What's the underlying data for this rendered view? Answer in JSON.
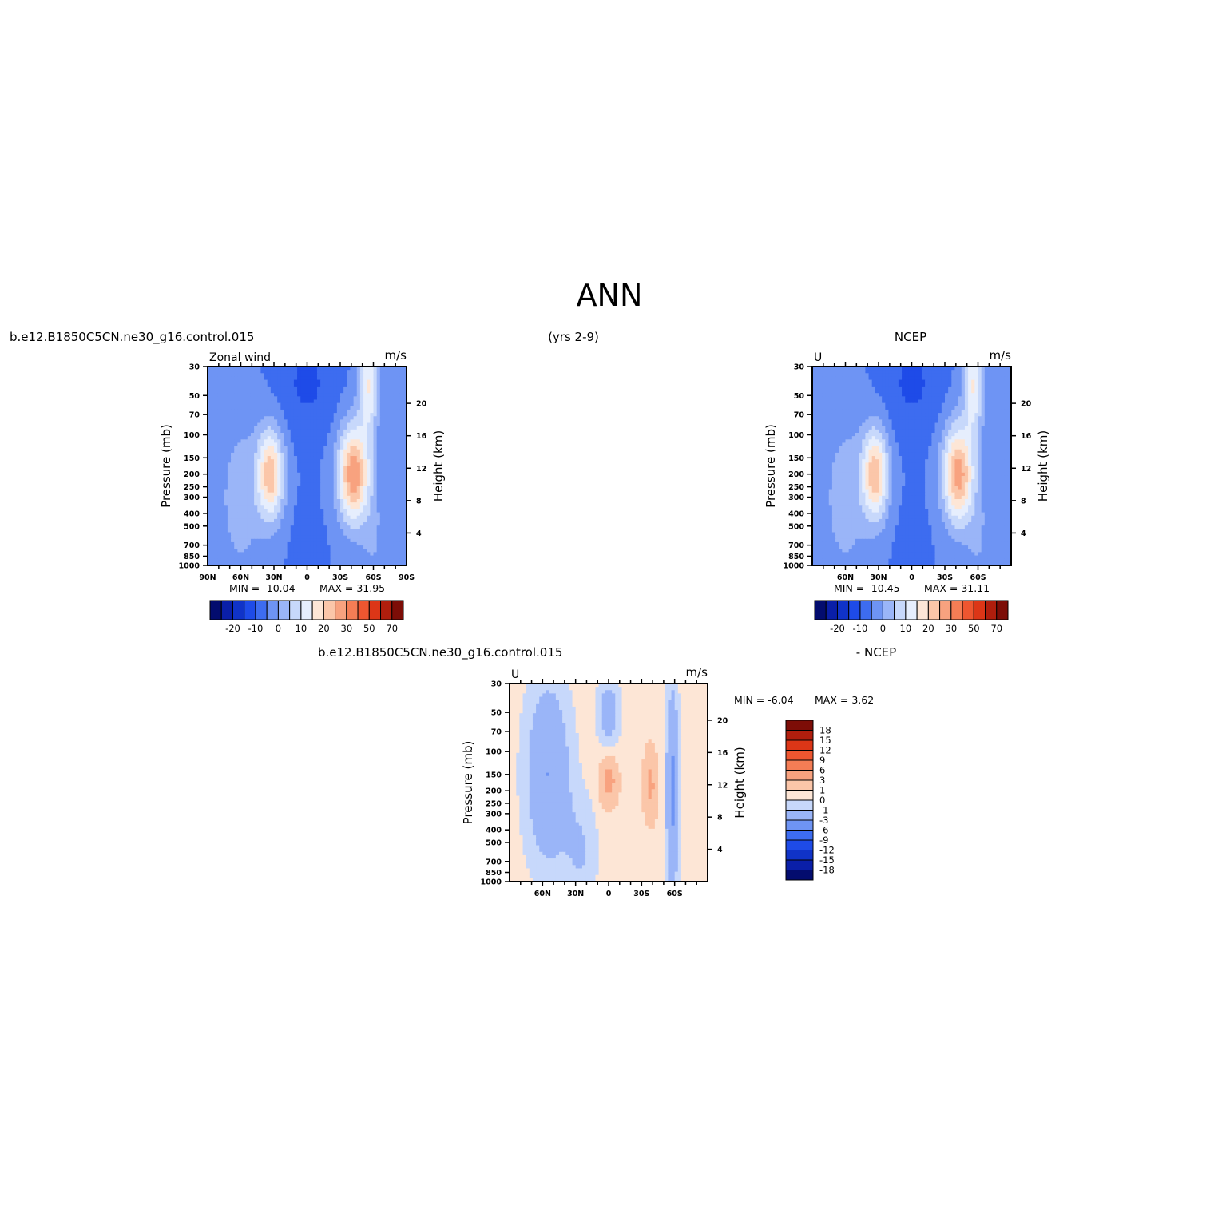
{
  "page": {
    "title": "ANN",
    "case_name": "b.e12.B1850C5CN.ne30_g16.control.015",
    "years": "(yrs 2-9)",
    "obs_name": "NCEP",
    "diff_case_name": "b.e12.B1850C5CN.ne30_g16.control.015",
    "diff_obs_name": "- NCEP"
  },
  "chart_data": [
    {
      "type": "heatmap",
      "panel": "model",
      "title": "Zonal wind",
      "units": "m/s",
      "ylabel": "Pressure (mb)",
      "ylabel_right": "Height (km)",
      "yscale": "log",
      "ylim": [
        1000,
        30
      ],
      "xlim": [
        90,
        -90
      ],
      "x_ticks": [
        90,
        60,
        30,
        0,
        -30,
        -60,
        -90
      ],
      "x_tick_labels": [
        "90N",
        "60N",
        "30N",
        "0",
        "30S",
        "60S",
        "90S"
      ],
      "pressure_ticks": [
        30,
        50,
        70,
        100,
        150,
        200,
        250,
        300,
        400,
        500,
        700,
        850,
        1000
      ],
      "height_ticks": [
        4,
        8,
        12,
        16,
        20
      ],
      "min_label": "MIN = -10.04",
      "max_label": "MAX = 31.95",
      "min": -10.04,
      "max": 31.95,
      "colorbar": {
        "levels": [
          -20,
          -10,
          0,
          10,
          20,
          30,
          50,
          70
        ],
        "tick_labels": [
          "-20",
          "-10",
          "0",
          "10",
          "20",
          "30",
          "50",
          "70"
        ],
        "boundaries": [
          -30,
          -25,
          -20,
          -15,
          -10,
          -5,
          0,
          5,
          10,
          15,
          20,
          25,
          30,
          40,
          50,
          60,
          70,
          80
        ],
        "colors": [
          "#030c6e",
          "#0a1fa8",
          "#1033c8",
          "#1e4be8",
          "#3d6cf0",
          "#6e94f4",
          "#9ab5f8",
          "#c7d8fb",
          "#e6eefd",
          "#fde6d6",
          "#fbc6a9",
          "#f8a27f",
          "#f47d55",
          "#ee5630",
          "#dc3617",
          "#b01e0d",
          "#7d0d07"
        ]
      }
    },
    {
      "type": "heatmap",
      "panel": "obs",
      "title": "U",
      "units": "m/s",
      "ylabel": "Pressure (mb)",
      "ylabel_right": "Height (km)",
      "yscale": "log",
      "ylim": [
        1000,
        30
      ],
      "xlim": [
        90,
        -90
      ],
      "x_ticks": [
        60,
        30,
        0,
        -30,
        -60
      ],
      "x_tick_labels": [
        "60N",
        "30N",
        "0",
        "30S",
        "60S"
      ],
      "pressure_ticks": [
        30,
        50,
        70,
        100,
        150,
        200,
        250,
        300,
        400,
        500,
        700,
        850,
        1000
      ],
      "height_ticks": [
        4,
        8,
        12,
        16,
        20
      ],
      "min_label": "MIN = -10.45",
      "max_label": "MAX = 31.11",
      "min": -10.45,
      "max": 31.11,
      "colorbar": {
        "levels": [
          -20,
          -10,
          0,
          10,
          20,
          30,
          50,
          70
        ],
        "tick_labels": [
          "-20",
          "-10",
          "0",
          "10",
          "20",
          "30",
          "50",
          "70"
        ],
        "boundaries": [
          -30,
          -25,
          -20,
          -15,
          -10,
          -5,
          0,
          5,
          10,
          15,
          20,
          25,
          30,
          40,
          50,
          60,
          70,
          80
        ],
        "colors": [
          "#030c6e",
          "#0a1fa8",
          "#1033c8",
          "#1e4be8",
          "#3d6cf0",
          "#6e94f4",
          "#9ab5f8",
          "#c7d8fb",
          "#e6eefd",
          "#fde6d6",
          "#fbc6a9",
          "#f8a27f",
          "#f47d55",
          "#ee5630",
          "#dc3617",
          "#b01e0d",
          "#7d0d07"
        ]
      }
    },
    {
      "type": "heatmap",
      "panel": "difference",
      "title": "U",
      "units": "m/s",
      "ylabel": "Pressure (mb)",
      "ylabel_right": "Height (km)",
      "yscale": "log",
      "ylim": [
        1000,
        30
      ],
      "xlim": [
        90,
        -90
      ],
      "x_ticks": [
        60,
        30,
        0,
        -30,
        -60
      ],
      "x_tick_labels": [
        "60N",
        "30N",
        "0",
        "30S",
        "60S"
      ],
      "pressure_ticks": [
        30,
        50,
        70,
        100,
        150,
        200,
        250,
        300,
        400,
        500,
        700,
        850,
        1000
      ],
      "height_ticks": [
        4,
        8,
        12,
        16,
        20
      ],
      "min_label": "MIN = -6.04",
      "max_label": "MAX = 3.62",
      "min": -6.04,
      "max": 3.62,
      "colorbar": {
        "levels": [
          18,
          15,
          12,
          9,
          6,
          3,
          1,
          0,
          -1,
          -3,
          -6,
          -9,
          -12,
          -15,
          -18
        ],
        "tick_labels": [
          "18",
          "15",
          "12",
          "9",
          "6",
          "3",
          "1",
          "0",
          "-1",
          "-3",
          "-6",
          "-9",
          "-12",
          "-15",
          "-18"
        ],
        "boundaries": [
          21,
          18,
          15,
          12,
          9,
          6,
          3,
          1,
          0,
          -1,
          -3,
          -6,
          -9,
          -12,
          -15,
          -18,
          -21
        ],
        "colors": [
          "#7d0d07",
          "#b01e0d",
          "#dc3617",
          "#ee5630",
          "#f47d55",
          "#f8a27f",
          "#fbc6a9",
          "#fde6d6",
          "#c7d8fb",
          "#9ab5f8",
          "#6e94f4",
          "#3d6cf0",
          "#1e4be8",
          "#1033c8",
          "#0a1fa8",
          "#030c6e"
        ]
      }
    }
  ]
}
